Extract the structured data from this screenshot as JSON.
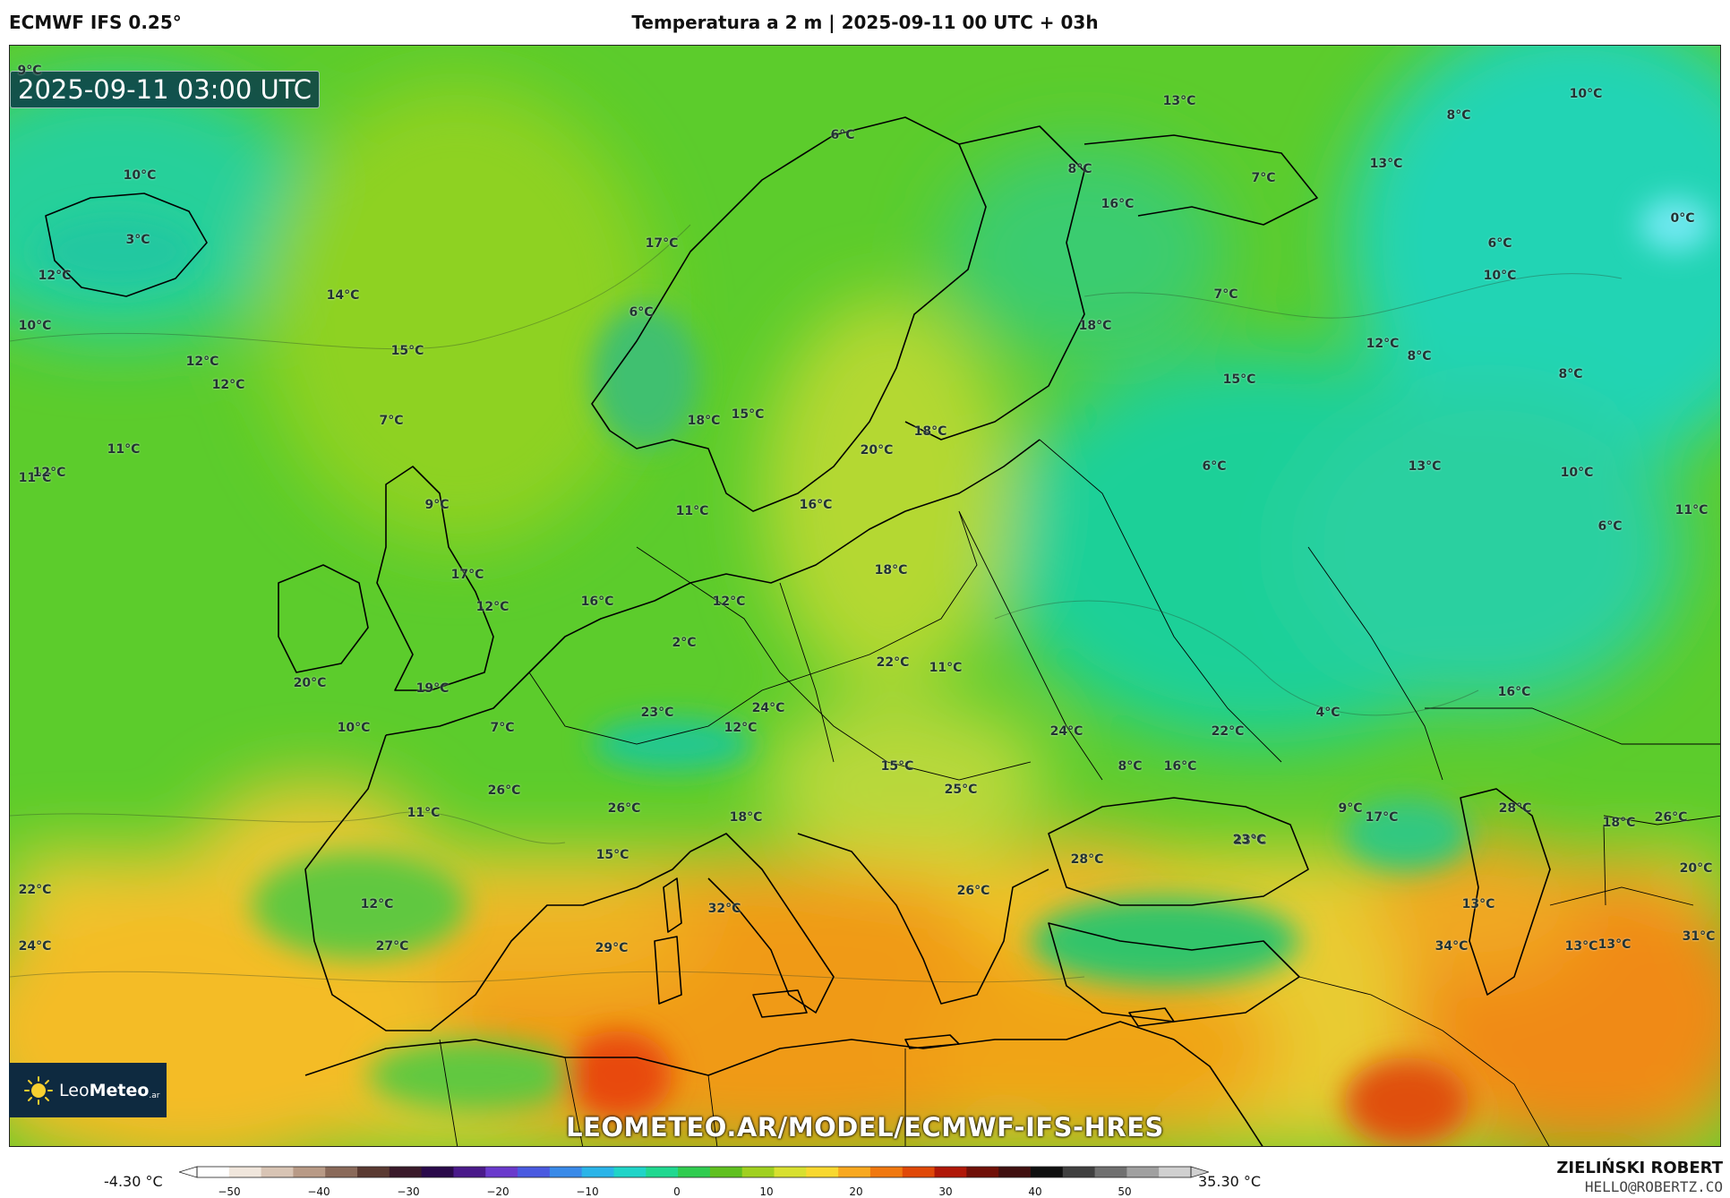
{
  "header": {
    "model": "ECMWF IFS 0.25°",
    "title": "Temperatura a 2 m | 2025-09-11 00 UTC + 03h"
  },
  "map": {
    "valid_time": "2025-09-11 03:00 UTC",
    "watermark": "LEOMETEO.AR/MODEL/ECMWF-IFS-HRES",
    "labels": [
      {
        "t": "9°C"
      },
      {
        "t": "10°C"
      },
      {
        "t": "3°C"
      },
      {
        "t": "12°C"
      },
      {
        "t": "14°C"
      },
      {
        "t": "10°C"
      },
      {
        "t": "15°C"
      },
      {
        "t": "12°C"
      },
      {
        "t": "12°C"
      },
      {
        "t": "7°C"
      },
      {
        "t": "11°C"
      },
      {
        "t": "11°C"
      },
      {
        "t": "12°C"
      },
      {
        "t": "9°C"
      },
      {
        "t": "17°C"
      },
      {
        "t": "6°C"
      },
      {
        "t": "6°C"
      },
      {
        "t": "18°C"
      },
      {
        "t": "15°C"
      },
      {
        "t": "20°C"
      },
      {
        "t": "18°C"
      },
      {
        "t": "11°C"
      },
      {
        "t": "16°C"
      },
      {
        "t": "17°C"
      },
      {
        "t": "12°C"
      },
      {
        "t": "16°C"
      },
      {
        "t": "12°C"
      },
      {
        "t": "18°C"
      },
      {
        "t": "2°C"
      },
      {
        "t": "20°C"
      },
      {
        "t": "19°C"
      },
      {
        "t": "10°C"
      },
      {
        "t": "7°C"
      },
      {
        "t": "23°C"
      },
      {
        "t": "24°C"
      },
      {
        "t": "12°C"
      },
      {
        "t": "22°C"
      },
      {
        "t": "11°C"
      },
      {
        "t": "26°C"
      },
      {
        "t": "26°C"
      },
      {
        "t": "11°C"
      },
      {
        "t": "18°C"
      },
      {
        "t": "15°C"
      },
      {
        "t": "25°C"
      },
      {
        "t": "15°C"
      },
      {
        "t": "12°C"
      },
      {
        "t": "22°C"
      },
      {
        "t": "23°C"
      },
      {
        "t": "24°C"
      },
      {
        "t": "27°C"
      },
      {
        "t": "32°C"
      },
      {
        "t": "29°C"
      },
      {
        "t": "26°C"
      },
      {
        "t": "28°C"
      },
      {
        "t": "16°C"
      },
      {
        "t": "13°C"
      },
      {
        "t": "8°C"
      },
      {
        "t": "16°C"
      },
      {
        "t": "7°C"
      },
      {
        "t": "18°C"
      },
      {
        "t": "6°C"
      },
      {
        "t": "15°C"
      },
      {
        "t": "12°C"
      },
      {
        "t": "8°C"
      },
      {
        "t": "13°C"
      },
      {
        "t": "7°C"
      },
      {
        "t": "24°C"
      },
      {
        "t": "22°C"
      },
      {
        "t": "4°C"
      },
      {
        "t": "8°C"
      },
      {
        "t": "9°C"
      },
      {
        "t": "17°C"
      },
      {
        "t": "23°C"
      },
      {
        "t": "13°C"
      },
      {
        "t": "34°C"
      },
      {
        "t": "13°C"
      },
      {
        "t": "10°C"
      },
      {
        "t": "8°C"
      },
      {
        "t": "13°C"
      },
      {
        "t": "0°C"
      },
      {
        "t": "6°C"
      },
      {
        "t": "10°C"
      },
      {
        "t": "8°C"
      },
      {
        "t": "10°C"
      },
      {
        "t": "6°C"
      },
      {
        "t": "11°C"
      },
      {
        "t": "16°C"
      },
      {
        "t": "28°C"
      },
      {
        "t": "18°C"
      },
      {
        "t": "26°C"
      },
      {
        "t": "20°C"
      },
      {
        "t": "31°C"
      },
      {
        "t": "13°C"
      }
    ]
  },
  "logo": {
    "brand_a": "Leo",
    "brand_b": "Meteo",
    "tld": ".ar"
  },
  "colorbar": {
    "min": "-4.30 °C",
    "max": "35.30 °C",
    "ticks": [
      "−50",
      "−40",
      "−30",
      "−20",
      "−10",
      "0",
      "10",
      "20",
      "30",
      "40",
      "50"
    ],
    "colors": [
      "#ffffff",
      "#f0e6dc",
      "#d8c4b4",
      "#b89a86",
      "#8a6a5a",
      "#5a3a32",
      "#3a1a2a",
      "#2a0a4a",
      "#4a1a8a",
      "#6a3acc",
      "#4a5ae0",
      "#3a8ae8",
      "#2ab4e8",
      "#20d4c8",
      "#20d890",
      "#30cc50",
      "#60c020",
      "#a0d020",
      "#d8e030",
      "#f8d830",
      "#f8a820",
      "#f07810",
      "#e04808",
      "#b01808",
      "#701008",
      "#401010",
      "#101010",
      "#404040",
      "#707070",
      "#a0a0a0",
      "#d0d0d0"
    ]
  },
  "author": {
    "name": "ZIELIŃSKI ROBERT",
    "email": "HELLO@ROBERTZ.CO"
  }
}
